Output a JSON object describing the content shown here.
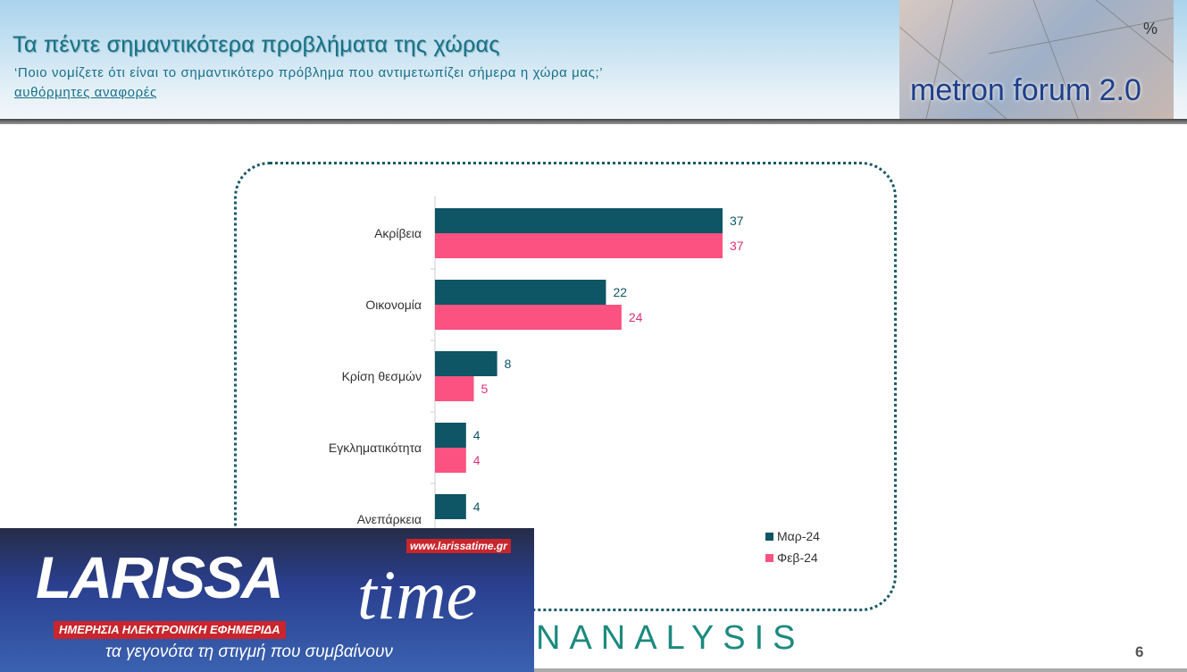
{
  "header": {
    "title": "Τα πέντε σημαντικότερα προβλήματα της χώρας",
    "subtitle": "‘Ποιο νομίζετε ότι είναι το σημαντικότερο πρόβλημα που αντιμετωπίζει σήμερα η χώρα μας;’",
    "note": "αυθόρμητες αναφορές",
    "logo_text": "metron forum 2.0",
    "logo_symbol": "%"
  },
  "chart_data": {
    "type": "bar",
    "orientation": "horizontal",
    "categories": [
      "Ακρίβεια",
      "Οικονομία",
      "Κρίση θεσμών",
      "Εγκληματικότητα",
      "Ανεπάρκεια"
    ],
    "series": [
      {
        "name": "Μαρ-24",
        "color": "#0e5566",
        "values": [
          37,
          22,
          8,
          4,
          4
        ]
      },
      {
        "name": "Φεβ-24",
        "color": "#fb5281",
        "values": [
          37,
          24,
          5,
          4,
          null
        ]
      }
    ],
    "xlim": [
      0,
      100
    ],
    "grid": false,
    "legend_position": "bottom-right",
    "label_colors": {
      "Μαρ-24": "#0e5566",
      "Φεβ-24": "#e0307a"
    }
  },
  "banner": {
    "brand_left": "LARISSA",
    "brand_right": "time",
    "url": "www.larissatime.gr",
    "tagline": "ΗΜΕΡΗΣΙΑ ΗΛΕΚΤΡΟΝΙΚΗ ΕΦΗΜΕΡΙΔΑ",
    "slogan": "τα γεγονότα τη στιγμή που συμβαίνουν"
  },
  "footer": {
    "brand": "NANALYSIS",
    "page": "6"
  }
}
